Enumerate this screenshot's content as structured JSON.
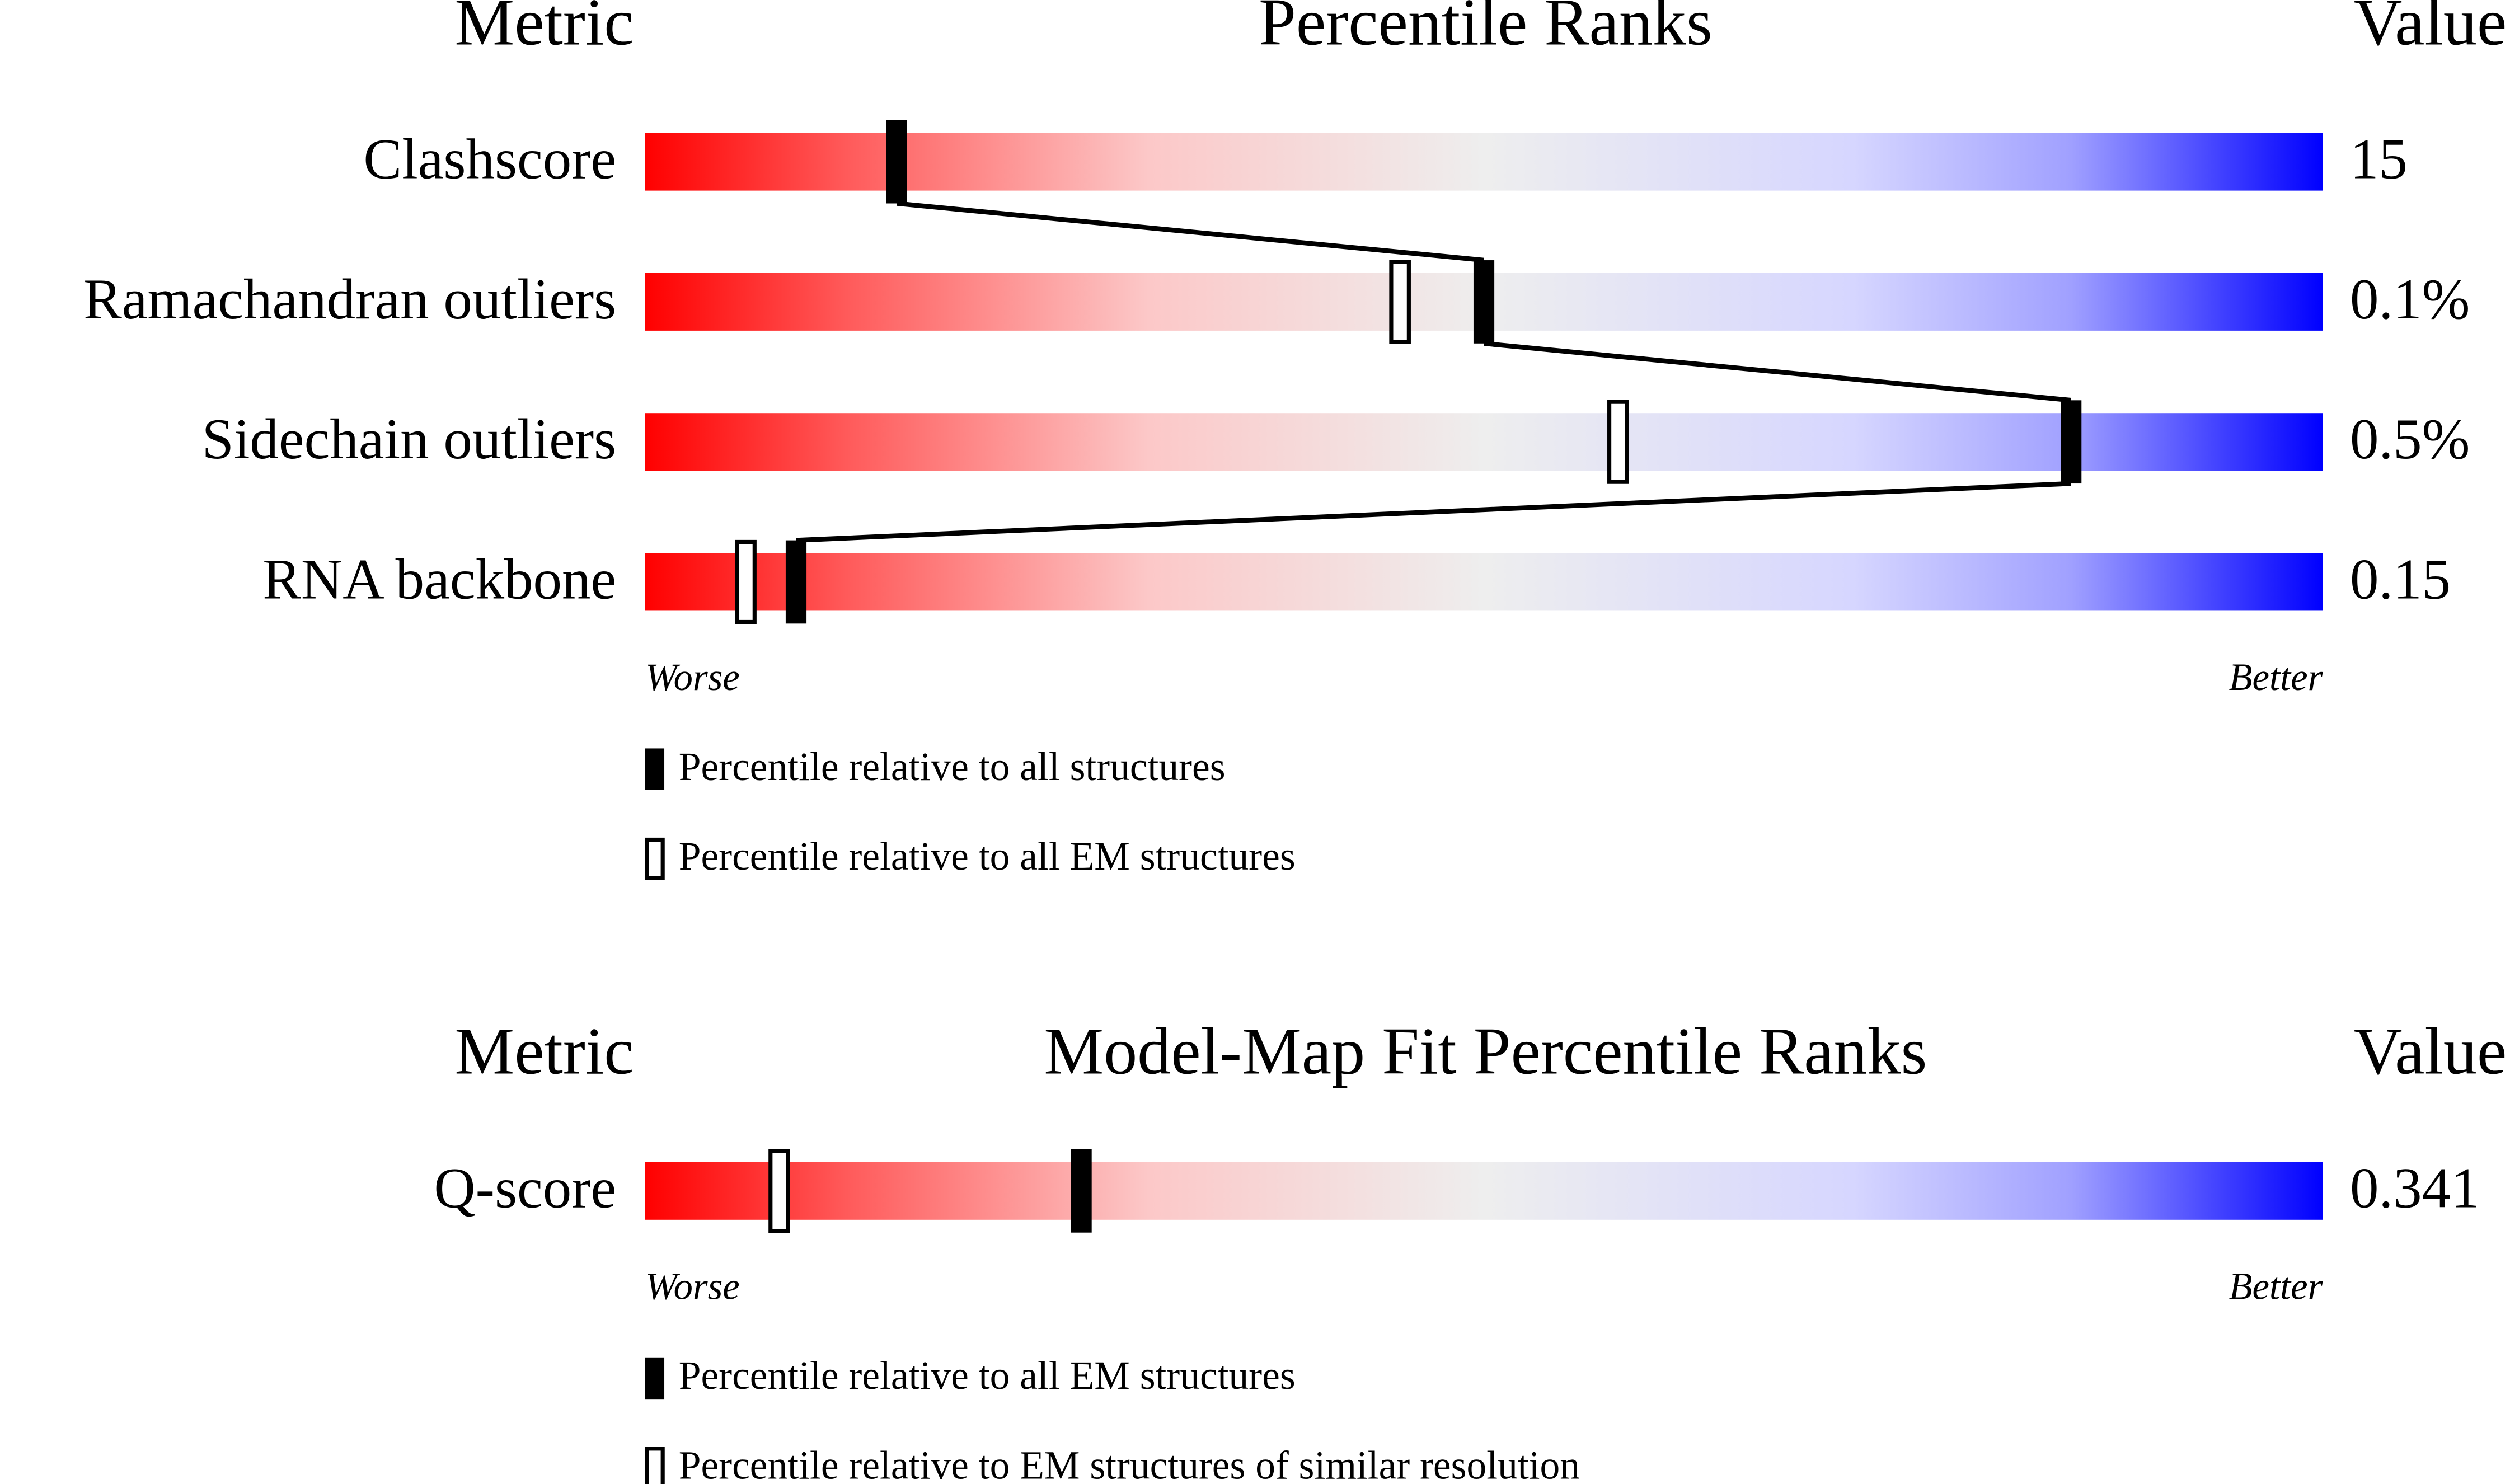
{
  "chart_data": [
    {
      "type": "slider",
      "header_metric": "Metric",
      "title": "Percentile Ranks",
      "header_value": "Value",
      "categories": [
        "Clashscore",
        "Ramachandran outliers",
        "Sidechain outliers",
        "RNA backbone"
      ],
      "metric_values": [
        "15",
        "0.1%",
        "0.5%",
        "0.15"
      ],
      "xlim": [
        0,
        100
      ],
      "worse": "Worse",
      "better": "Better",
      "series": [
        {
          "name": "Percentile relative to all structures",
          "marker": "filled",
          "color": "#000000",
          "connected": true,
          "values": [
            15,
            50,
            85,
            9
          ]
        },
        {
          "name": "Percentile relative to all EM structures",
          "marker": "open",
          "color": "#000000",
          "connected": false,
          "values": [
            null,
            45,
            58,
            6
          ]
        }
      ]
    },
    {
      "type": "slider",
      "header_metric": "Metric",
      "title": "Model-Map Fit Percentile Ranks",
      "header_value": "Value",
      "categories": [
        "Q-score"
      ],
      "metric_values": [
        "0.341"
      ],
      "xlim": [
        0,
        100
      ],
      "worse": "Worse",
      "better": "Better",
      "series": [
        {
          "name": "Percentile relative to all EM structures",
          "marker": "filled",
          "color": "#000000",
          "connected": true,
          "values": [
            26
          ]
        },
        {
          "name": "Percentile relative to EM structures of similar resolution",
          "marker": "open",
          "color": "#000000",
          "connected": false,
          "values": [
            8
          ]
        }
      ]
    }
  ]
}
